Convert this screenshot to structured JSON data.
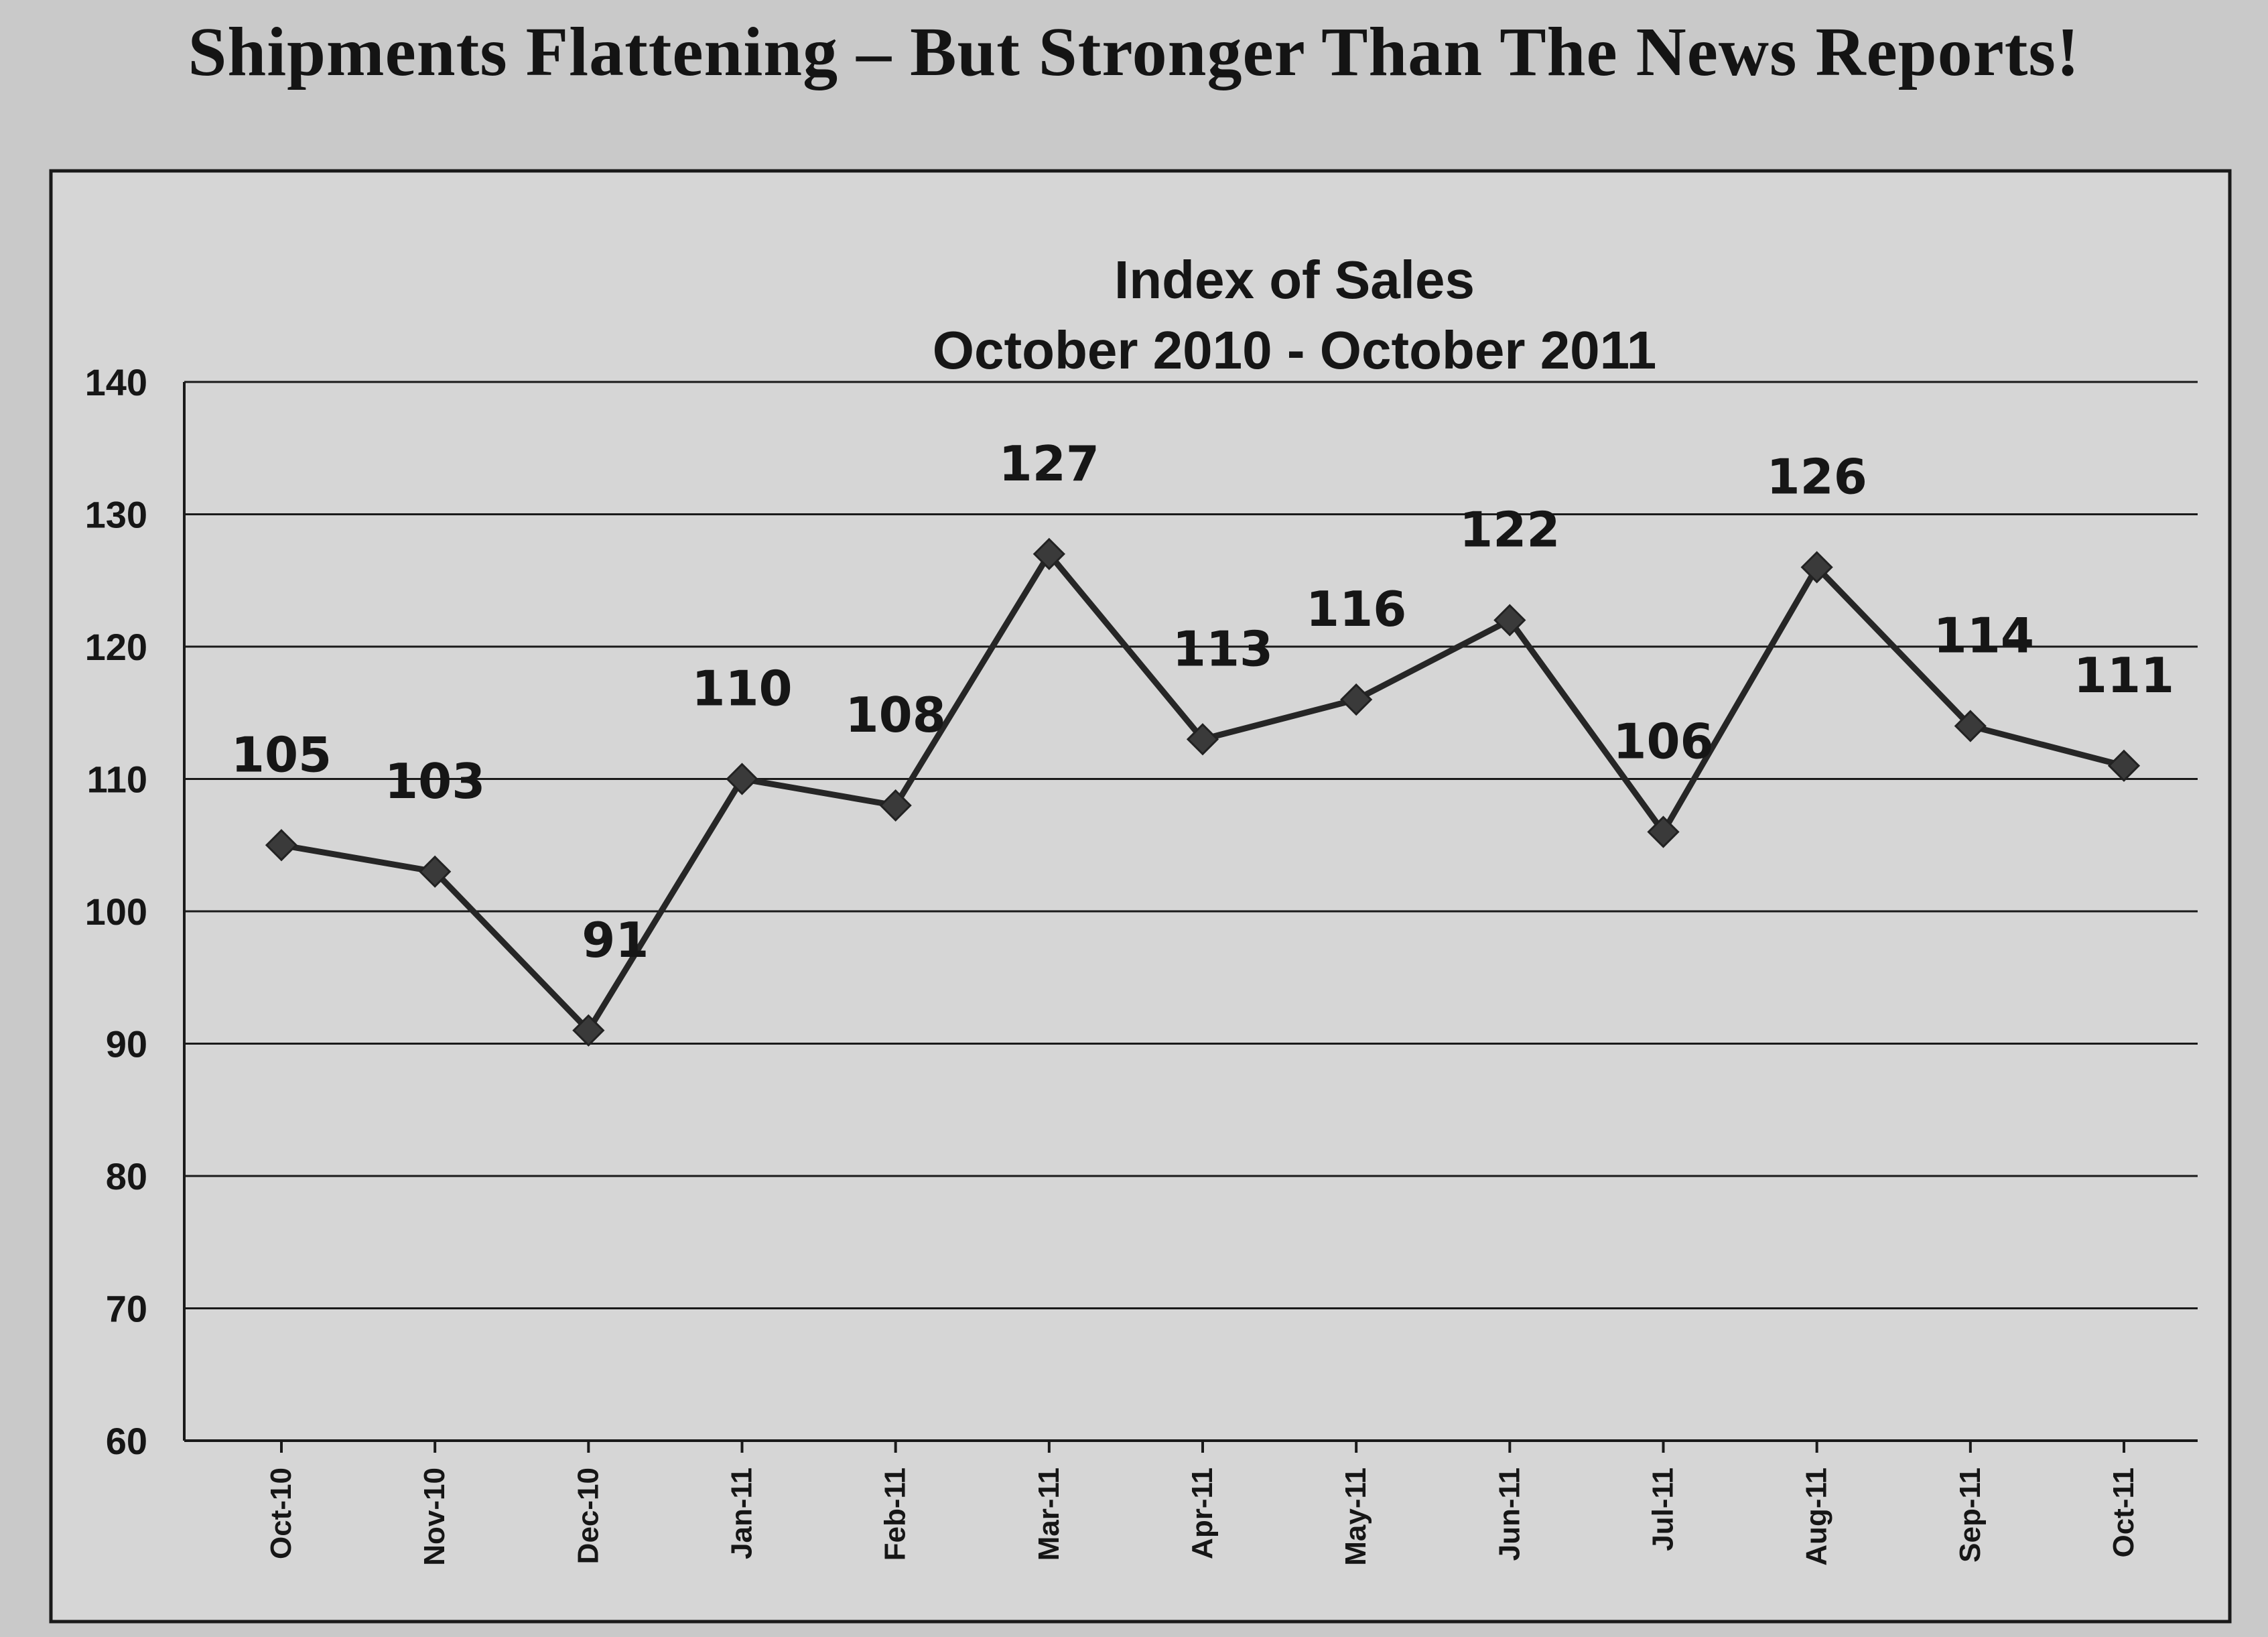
{
  "page_heading": "Shipments Flattening – But Stronger Than The News Reports!",
  "chart_data": {
    "type": "line",
    "title": "Index of Sales",
    "subtitle": "October 2010 - October 2011",
    "categories": [
      "Oct-10",
      "Nov-10",
      "Dec-10",
      "Jan-11",
      "Feb-11",
      "Mar-11",
      "Apr-11",
      "May-11",
      "Jun-11",
      "Jul-11",
      "Aug-11",
      "Sep-11",
      "Oct-11"
    ],
    "series": [
      {
        "values": [
          105,
          103,
          91,
          110,
          108,
          127,
          113,
          116,
          122,
          106,
          126,
          114,
          111
        ]
      }
    ],
    "data_labels": [
      "105",
      "103",
      "91",
      "110",
      "108",
      "127",
      "113",
      "116",
      "122",
      "106",
      "126",
      "114",
      "111"
    ],
    "ylim": [
      60,
      140
    ],
    "yticks": [
      "60",
      "70",
      "80",
      "90",
      "100",
      "110",
      "120",
      "130",
      "140"
    ],
    "xlabel": "",
    "ylabel": "",
    "grid": true,
    "legend": "none",
    "line_color": "#262626",
    "marker": "diamond"
  }
}
